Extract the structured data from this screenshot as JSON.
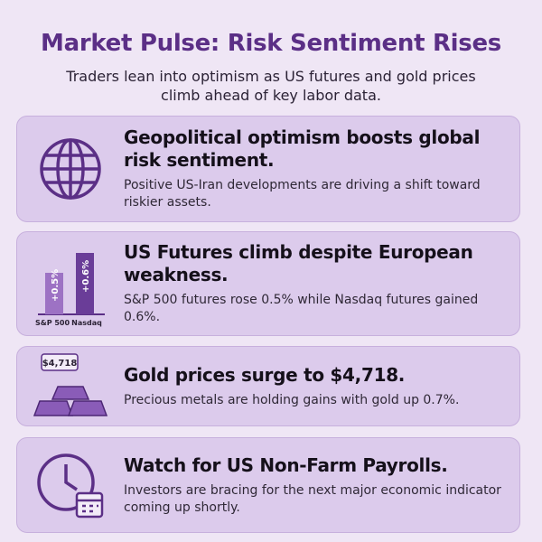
{
  "header": {
    "title": "Market Pulse: Risk Sentiment Rises",
    "subtitle": "Traders lean into optimism as US futures and gold prices climb ahead of key labor data."
  },
  "cards": [
    {
      "heading": "Geopolitical optimism boosts global risk sentiment.",
      "body": "Positive US-Iran developments are driving a shift toward riskier assets."
    },
    {
      "heading": "US Futures climb despite European weakness.",
      "body": "S&P 500 futures rose 0.5% while Nasdaq futures gained 0.6%.",
      "icon": {
        "bars": [
          {
            "label": "S&P 500",
            "value_label": "+0.5%"
          },
          {
            "label": "Nasdaq",
            "value_label": "+0.6%"
          }
        ]
      }
    },
    {
      "heading": "Gold prices surge to $4,718.",
      "body": "Precious metals are holding gains with gold up 0.7%.",
      "icon": {
        "tag": "$4,718"
      }
    },
    {
      "heading": "Watch for US Non-Farm Payrolls.",
      "body": "Investors are bracing for the next major economic indicator coming up shortly."
    }
  ]
}
